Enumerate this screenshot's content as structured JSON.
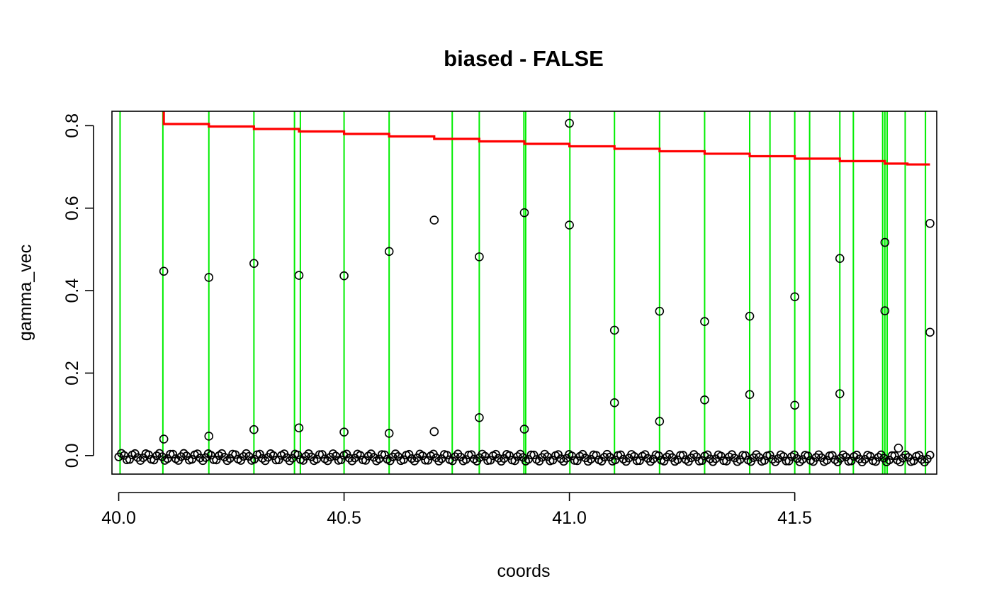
{
  "chart_data": {
    "type": "scatter",
    "title": "biased - FALSE",
    "xlabel": "coords",
    "ylabel": "gamma_vec",
    "xlim": [
      39.985,
      41.815
    ],
    "ylim": [
      -0.045,
      0.835
    ],
    "x_ticks": [
      {
        "value": 40.0,
        "label": "40.0"
      },
      {
        "value": 40.5,
        "label": "40.5"
      },
      {
        "value": 41.0,
        "label": "41.0"
      },
      {
        "value": 41.5,
        "label": "41.5"
      }
    ],
    "y_ticks": [
      {
        "value": 0.0,
        "label": "0.0"
      },
      {
        "value": 0.2,
        "label": "0.2"
      },
      {
        "value": 0.4,
        "label": "0.4"
      },
      {
        "value": 0.6,
        "label": "0.6"
      },
      {
        "value": 0.8,
        "label": "0.8"
      }
    ],
    "grid": false,
    "legend": "none",
    "colors": {
      "points": "#000000",
      "step_line": "#ff0000",
      "vertical_lines": "#00ee00",
      "background": "#ffffff"
    },
    "points": [
      {
        "x": 40.1,
        "y": 0.447
      },
      {
        "x": 40.1,
        "y": 0.04
      },
      {
        "x": 40.2,
        "y": 0.432
      },
      {
        "x": 40.2,
        "y": 0.047
      },
      {
        "x": 40.3,
        "y": 0.466
      },
      {
        "x": 40.3,
        "y": 0.063
      },
      {
        "x": 40.4,
        "y": 0.437
      },
      {
        "x": 40.4,
        "y": 0.067
      },
      {
        "x": 40.5,
        "y": 0.436
      },
      {
        "x": 40.5,
        "y": 0.057
      },
      {
        "x": 40.6,
        "y": 0.495
      },
      {
        "x": 40.6,
        "y": 0.054
      },
      {
        "x": 40.7,
        "y": 0.571
      },
      {
        "x": 40.7,
        "y": 0.058
      },
      {
        "x": 40.8,
        "y": 0.482
      },
      {
        "x": 40.8,
        "y": 0.092
      },
      {
        "x": 40.9,
        "y": 0.589
      },
      {
        "x": 40.9,
        "y": 0.064
      },
      {
        "x": 41.0,
        "y": 0.806
      },
      {
        "x": 41.0,
        "y": 0.559
      },
      {
        "x": 41.1,
        "y": 0.304
      },
      {
        "x": 41.1,
        "y": 0.128
      },
      {
        "x": 41.2,
        "y": 0.35
      },
      {
        "x": 41.2,
        "y": 0.083
      },
      {
        "x": 41.3,
        "y": 0.325
      },
      {
        "x": 41.3,
        "y": 0.135
      },
      {
        "x": 41.4,
        "y": 0.338
      },
      {
        "x": 41.4,
        "y": 0.148
      },
      {
        "x": 41.5,
        "y": 0.385
      },
      {
        "x": 41.5,
        "y": 0.122
      },
      {
        "x": 41.6,
        "y": 0.478
      },
      {
        "x": 41.6,
        "y": 0.15
      },
      {
        "x": 41.7,
        "y": 0.517
      },
      {
        "x": 41.7,
        "y": 0.351
      },
      {
        "x": 41.73,
        "y": 0.018
      },
      {
        "x": 41.8,
        "y": 0.563
      },
      {
        "x": 41.8,
        "y": 0.299
      }
    ],
    "baseline_points": {
      "x_start": 40.0,
      "x_end": 41.8,
      "count": 300,
      "y_min": -0.012,
      "y_max": 0.01,
      "description": "dense band of points near zero"
    },
    "step_line": [
      {
        "x0": 40.1,
        "x1": 40.2,
        "y": 0.804
      },
      {
        "x0": 40.2,
        "x1": 40.3,
        "y": 0.798
      },
      {
        "x0": 40.3,
        "x1": 40.4,
        "y": 0.792
      },
      {
        "x0": 40.4,
        "x1": 40.5,
        "y": 0.786
      },
      {
        "x0": 40.5,
        "x1": 40.6,
        "y": 0.78
      },
      {
        "x0": 40.6,
        "x1": 40.7,
        "y": 0.774
      },
      {
        "x0": 40.7,
        "x1": 40.8,
        "y": 0.768
      },
      {
        "x0": 40.8,
        "x1": 40.9,
        "y": 0.762
      },
      {
        "x0": 40.9,
        "x1": 41.0,
        "y": 0.756
      },
      {
        "x0": 41.0,
        "x1": 41.1,
        "y": 0.75
      },
      {
        "x0": 41.1,
        "x1": 41.2,
        "y": 0.744
      },
      {
        "x0": 41.2,
        "x1": 41.3,
        "y": 0.738
      },
      {
        "x0": 41.3,
        "x1": 41.4,
        "y": 0.732
      },
      {
        "x0": 41.4,
        "x1": 41.5,
        "y": 0.726
      },
      {
        "x0": 41.5,
        "x1": 41.6,
        "y": 0.72
      },
      {
        "x0": 41.6,
        "x1": 41.7,
        "y": 0.714
      },
      {
        "x0": 41.7,
        "x1": 41.75,
        "y": 0.708
      },
      {
        "x0": 41.75,
        "x1": 41.8,
        "y": 0.706
      }
    ],
    "vertical_lines": [
      40.003,
      40.098,
      40.2,
      40.3,
      40.39,
      40.403,
      40.5,
      40.6,
      40.74,
      40.8,
      40.899,
      40.903,
      41.001,
      41.1,
      41.2,
      41.3,
      41.4,
      41.445,
      41.5,
      41.533,
      41.6,
      41.63,
      41.695,
      41.7,
      41.705,
      41.745,
      41.79
    ]
  }
}
